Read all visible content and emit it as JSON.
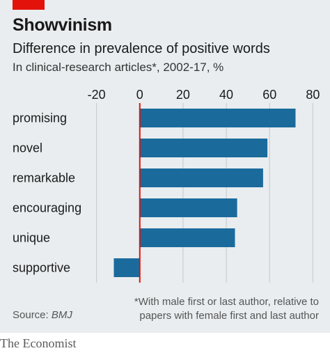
{
  "header": {
    "title": "Showvinism",
    "subtitle": "Difference in prevalence of positive words",
    "subtitle2": "In clinical-research articles*, 2002-17, %"
  },
  "footer": {
    "source_label": "Source: ",
    "source_name": "BMJ",
    "footnote_line1": "*With male first or last author, relative to",
    "footnote_line2": "papers with female first and last author",
    "brand": "The Economist"
  },
  "colors": {
    "bar": "#1a6b9c",
    "zero_line": "#e3120b",
    "grid": "#c2c8cc",
    "accent_tag": "#e3120b"
  },
  "chart_data": {
    "type": "bar",
    "orientation": "horizontal",
    "categories": [
      "promising",
      "novel",
      "remarkable",
      "encouraging",
      "unique",
      "supportive"
    ],
    "values": [
      72,
      59,
      57,
      45,
      44,
      -12
    ],
    "xticks": [
      -20,
      0,
      20,
      40,
      60,
      80
    ],
    "xlim": [
      -26,
      86
    ],
    "grid": true
  }
}
